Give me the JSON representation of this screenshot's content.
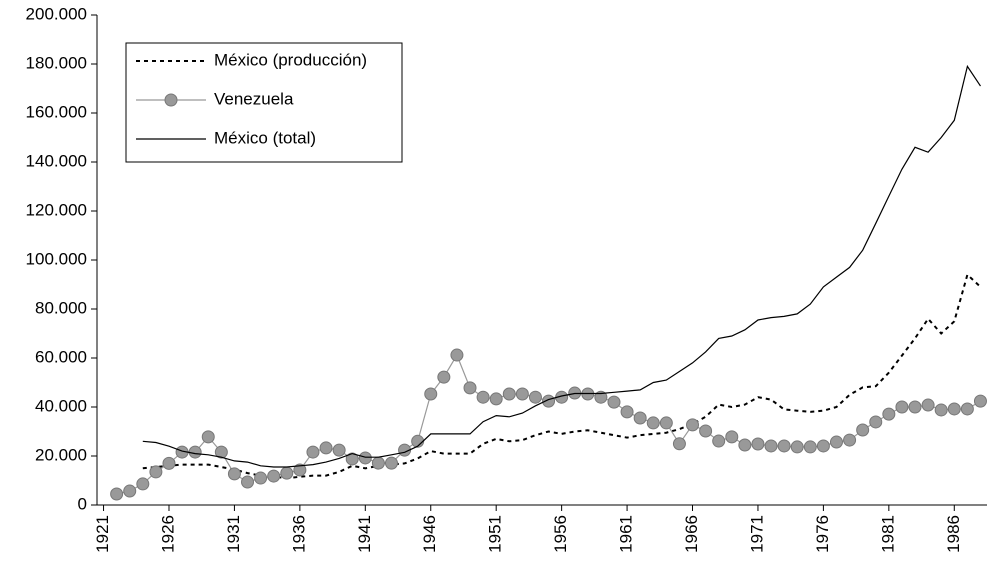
{
  "chart_data": {
    "type": "line",
    "categories": [
      "1921",
      null,
      null,
      null,
      null,
      "1926",
      null,
      null,
      null,
      null,
      "1931",
      null,
      null,
      null,
      null,
      "1936",
      null,
      null,
      null,
      null,
      "1941",
      null,
      null,
      null,
      null,
      "1946",
      null,
      null,
      null,
      null,
      "1951",
      null,
      null,
      null,
      null,
      "1956",
      null,
      null,
      null,
      null,
      "1961",
      null,
      null,
      null,
      null,
      "1966",
      null,
      null,
      null,
      null,
      "1971",
      null,
      null,
      null,
      null,
      "1976",
      null,
      null,
      null,
      null,
      "1981",
      null,
      null,
      null,
      null,
      "1986",
      null,
      null
    ],
    "series": [
      {
        "name": "México (producción)",
        "color": "#000000",
        "style": "dotted",
        "values": [
          null,
          null,
          null,
          15000,
          15500,
          16000,
          16500,
          16500,
          16500,
          15500,
          14500,
          13000,
          12000,
          11500,
          11000,
          11500,
          12000,
          12000,
          13500,
          16000,
          15000,
          16000,
          16500,
          17000,
          19000,
          22000,
          21000,
          21000,
          21000,
          25000,
          27000,
          26000,
          26500,
          28500,
          30000,
          29000,
          30000,
          30500,
          29500,
          28500,
          27500,
          28500,
          29000,
          29500,
          31000,
          33000,
          36000,
          41000,
          40000,
          41000,
          44000,
          43000,
          39000,
          38500,
          38000,
          38500,
          40000,
          45000,
          48000,
          48500,
          54000,
          61000,
          68000,
          76000,
          70000,
          75000,
          94000,
          89000
        ]
      },
      {
        "name": "Venezuela",
        "color": "#999999",
        "style": "marker",
        "values": [
          null,
          4500,
          5700,
          8600,
          13500,
          17000,
          21600,
          21600,
          27800,
          21600,
          12700,
          9400,
          11000,
          11800,
          13000,
          14300,
          21600,
          23300,
          22400,
          18800,
          19200,
          17100,
          17100,
          22400,
          26000,
          45300,
          52200,
          61200,
          47800,
          44000,
          43300,
          45300,
          45300,
          44000,
          42400,
          44000,
          45700,
          45300,
          44000,
          42000,
          38000,
          35500,
          33500,
          33500,
          25000,
          32700,
          30200,
          26100,
          27800,
          24500,
          24900,
          24100,
          24100,
          23700,
          23700,
          24100,
          25700,
          26500,
          30600,
          33900,
          37100,
          40000,
          40000,
          40800,
          38800,
          39200,
          39200,
          42400
        ]
      },
      {
        "name": "México (total)",
        "color": "#000000",
        "style": "solid",
        "values": [
          null,
          null,
          null,
          26000,
          25500,
          24000,
          22000,
          21000,
          20500,
          19500,
          18000,
          17500,
          16000,
          15500,
          15500,
          16000,
          16500,
          17500,
          19000,
          21000,
          19500,
          19500,
          20500,
          21500,
          24000,
          29000,
          29000,
          29000,
          29000,
          34000,
          36500,
          36000,
          37500,
          40500,
          43000,
          44500,
          45500,
          45500,
          45500,
          46000,
          46500,
          47000,
          50000,
          51000,
          54500,
          58000,
          62500,
          68000,
          69000,
          71500,
          75500,
          76500,
          77000,
          78000,
          82000,
          89000,
          93000,
          97000,
          104000,
          115000,
          126000,
          137000,
          146000,
          144000,
          150000,
          157000,
          179000,
          171000
        ]
      }
    ],
    "ylim": [
      0,
      200000
    ],
    "yticks": [
      0,
      {
        "value": 20000,
        "label": "20.000"
      },
      {
        "value": 40000,
        "label": "40.000"
      },
      {
        "value": 60000,
        "label": "60.000"
      },
      {
        "value": 80000,
        "label": "80.000"
      },
      {
        "value": 100000,
        "label": "100.000"
      },
      {
        "value": 120000,
        "label": "120.000"
      },
      {
        "value": 140000,
        "label": "140.000"
      },
      {
        "value": 160000,
        "label": "160.000"
      },
      {
        "value": 180000,
        "label": "180.000"
      },
      {
        "value": 200000,
        "label": "200.000"
      }
    ],
    "grid": false,
    "legend": "top-left"
  }
}
